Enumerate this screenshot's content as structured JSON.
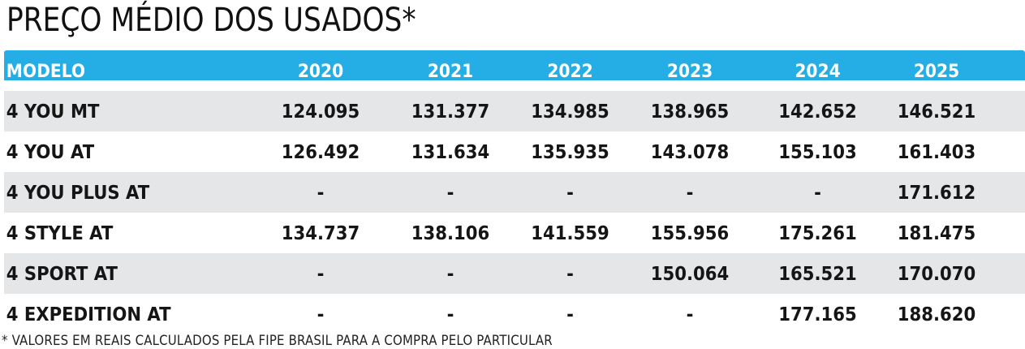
{
  "title": "PREÇO MÉDIO DOS USADOS*",
  "table": {
    "headers": [
      "MODELO",
      "2020",
      "2021",
      "2022",
      "2023",
      "2024",
      "2025"
    ],
    "rows": [
      {
        "model": "4 YOU MT",
        "values": [
          "124.095",
          "131.377",
          "134.985",
          "138.965",
          "142.652",
          "146.521"
        ]
      },
      {
        "model": "4 YOU AT",
        "values": [
          "126.492",
          "131.634",
          "135.935",
          "143.078",
          "155.103",
          "161.403"
        ]
      },
      {
        "model": "4 YOU PLUS AT",
        "values": [
          "-",
          "-",
          "-",
          "-",
          "-",
          "171.612"
        ]
      },
      {
        "model": "4 STYLE AT",
        "values": [
          "134.737",
          "138.106",
          "141.559",
          "155.956",
          "175.261",
          "181.475"
        ]
      },
      {
        "model": "4 SPORT AT",
        "values": [
          "-",
          "-",
          "-",
          "150.064",
          "165.521",
          "170.070"
        ]
      },
      {
        "model": "4 EXPEDITION AT",
        "values": [
          "-",
          "-",
          "-",
          "-",
          "177.165",
          "188.620"
        ]
      }
    ]
  },
  "footnote": "* VALORES EM REAIS CALCULADOS PELA FIPE BRASIL PARA A COMPRA PELO PARTICULAR",
  "colors": {
    "header_bg": "#25aee6",
    "header_text": "#ffffff",
    "row_shade": "#e4e6e8"
  }
}
